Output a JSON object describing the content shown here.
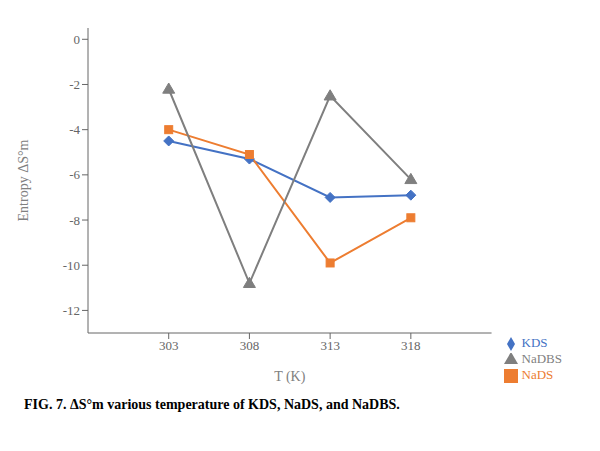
{
  "chart_data": {
    "type": "line",
    "x": [
      303,
      308,
      313,
      318
    ],
    "series": [
      {
        "name": "KDS",
        "color": "#4472C4",
        "marker": "diamond",
        "values": [
          -4.5,
          -5.3,
          -7.0,
          -6.9
        ]
      },
      {
        "name": "NaDS",
        "color": "#ED7D31",
        "marker": "square",
        "values": [
          -4.0,
          -5.1,
          -9.9,
          -7.9
        ]
      },
      {
        "name": "NaDBS",
        "color": "#7F7F7F",
        "marker": "triangle",
        "values": [
          -2.2,
          -10.8,
          -2.5,
          -6.2
        ]
      }
    ],
    "xlabel": "T (K)",
    "ylabel": "Entropy ΔS°m",
    "xlim": [
      298,
      323
    ],
    "xticks": [
      303,
      308,
      313,
      318
    ],
    "ylim": [
      -13,
      0.5
    ],
    "yticks": [
      0,
      -2,
      -4,
      -6,
      -8,
      -10,
      -12
    ],
    "legend": "lower right",
    "grid": false,
    "annotations": [
      "FIG. 7. ΔS°m various temperature of KDS, NaDS, and NaDBS."
    ]
  }
}
